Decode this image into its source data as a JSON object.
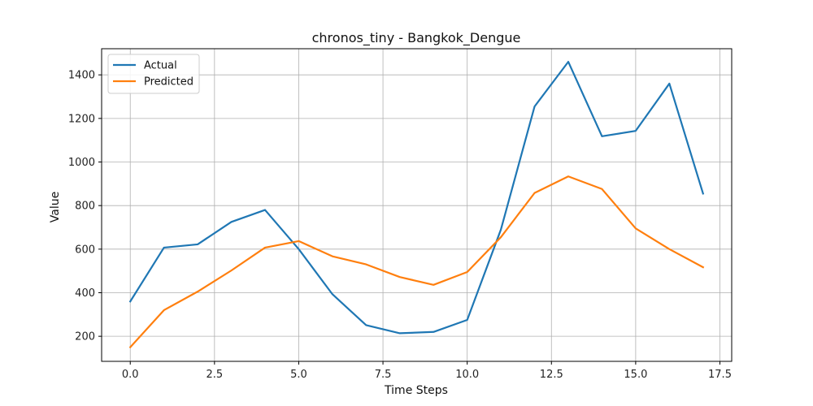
{
  "chart_data": {
    "type": "line",
    "title": "chronos_tiny - Bangkok_Dengue",
    "xlabel": "Time Steps",
    "ylabel": "Value",
    "x": [
      0,
      1,
      2,
      3,
      4,
      5,
      6,
      7,
      8,
      9,
      10,
      11,
      12,
      13,
      14,
      15,
      16,
      17
    ],
    "xlim": [
      -0.85,
      17.85
    ],
    "ylim": [
      85,
      1520
    ],
    "xticks": [
      "0.0",
      "2.5",
      "5.0",
      "7.5",
      "10.0",
      "12.5",
      "15.0",
      "17.5"
    ],
    "yticks": [
      "200",
      "400",
      "600",
      "800",
      "1000",
      "1200",
      "1400"
    ],
    "grid": true,
    "legend": "top-left",
    "series": [
      {
        "name": "Actual",
        "color": "#1f77b4",
        "values": [
          360,
          607,
          622,
          725,
          780,
          600,
          393,
          251,
          214,
          220,
          275,
          690,
          1255,
          1460,
          1118,
          1143,
          1360,
          855
        ]
      },
      {
        "name": "Predicted",
        "color": "#ff7f0e",
        "values": [
          150,
          320,
          405,
          502,
          607,
          637,
          567,
          530,
          472,
          436,
          495,
          655,
          858,
          934,
          876,
          695,
          600,
          517
        ]
      }
    ]
  }
}
